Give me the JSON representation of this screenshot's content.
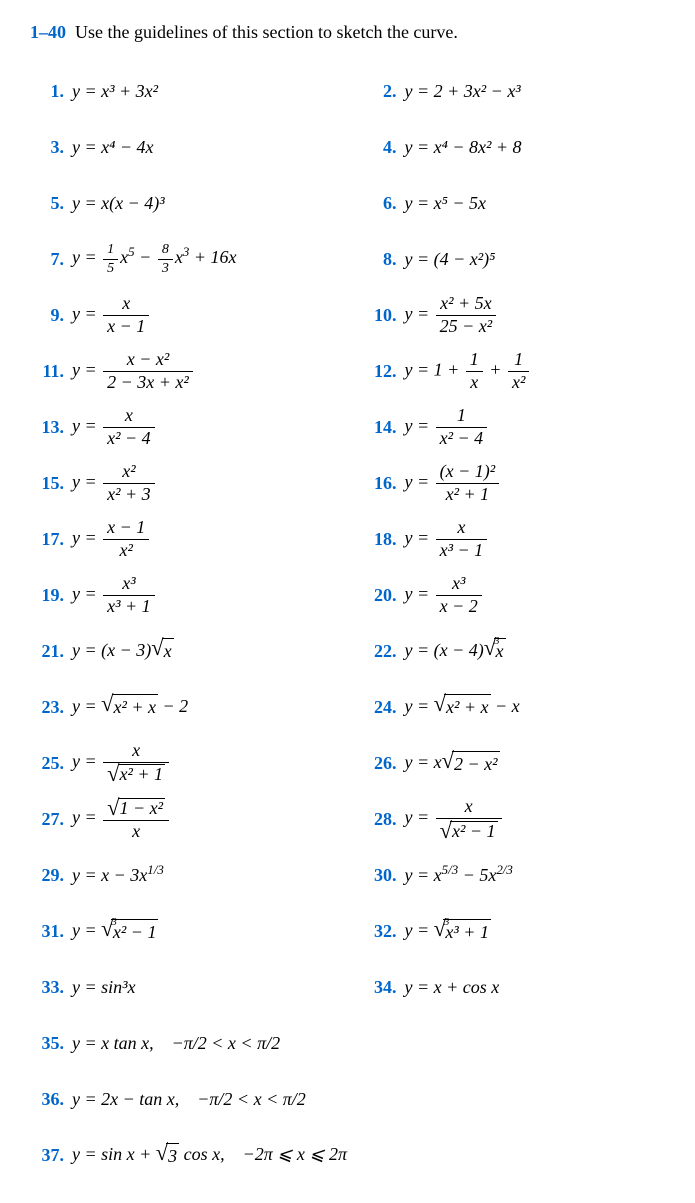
{
  "header": {
    "range": "1–40",
    "text": "Use the guidelines of this section to sketch the curve."
  },
  "p": {
    "n1": "1.",
    "n2": "2.",
    "n3": "3.",
    "n4": "4.",
    "n5": "5.",
    "n6": "6.",
    "n7": "7.",
    "n8": "8.",
    "n9": "9.",
    "n10": "10.",
    "n11": "11.",
    "n12": "12.",
    "n13": "13.",
    "n14": "14.",
    "n15": "15.",
    "n16": "16.",
    "n17": "17.",
    "n18": "18.",
    "n19": "19.",
    "n20": "20.",
    "n21": "21.",
    "n22": "22.",
    "n23": "23.",
    "n24": "24.",
    "n25": "25.",
    "n26": "26.",
    "n27": "27.",
    "n28": "28.",
    "n29": "29.",
    "n30": "30.",
    "n31": "31.",
    "n32": "32.",
    "n33": "33.",
    "n34": "34.",
    "n35": "35.",
    "n36": "36.",
    "n37": "37."
  },
  "expr": {
    "e1": "y = x³ + 3x²",
    "e2": "y = 2 + 3x² − x³",
    "e3": "y = x⁴ − 4x",
    "e4": "y = x⁴ − 8x² + 8",
    "e5": "y = x(x − 4)³",
    "e6": "y = x⁵ − 5x",
    "e8": "y = (4 − x²)⁵",
    "e9_lhs": "y = ",
    "e9_num": "x",
    "e9_den": "x − 1",
    "e10_lhs": "y = ",
    "e10_num": "x² + 5x",
    "e10_den": "25 − x²",
    "e11_lhs": "y = ",
    "e11_num": "x − x²",
    "e11_den": "2 − 3x + x²",
    "e12_lhs": "y = 1 + ",
    "e12_num1": "1",
    "e12_den1": "x",
    "e12_plus": " + ",
    "e12_num2": "1",
    "e12_den2": "x²",
    "e13_lhs": "y = ",
    "e13_num": "x",
    "e13_den": "x² − 4",
    "e14_lhs": "y = ",
    "e14_num": "1",
    "e14_den": "x² − 4",
    "e15_lhs": "y = ",
    "e15_num": "x²",
    "e15_den": "x² + 3",
    "e16_lhs": "y = ",
    "e16_num": "(x − 1)²",
    "e16_den": "x² + 1",
    "e17_lhs": "y = ",
    "e17_num": "x − 1",
    "e17_den": "x²",
    "e18_lhs": "y = ",
    "e18_num": "x",
    "e18_den": "x³ − 1",
    "e19_lhs": "y = ",
    "e19_num": "x³",
    "e19_den": "x³ + 1",
    "e20_lhs": "y = ",
    "e20_num": "x³",
    "e20_den": "x − 2",
    "e21_pre": "y = (x − 3)",
    "e21_rad": "x",
    "e22_pre": "y = (x − 4)",
    "e22_idx": "3",
    "e22_rad": "x",
    "e23_pre": "y = ",
    "e23_rad": "x² + x",
    "e23_post": " − 2",
    "e24_pre": "y = ",
    "e24_rad": "x² + x",
    "e24_post": " − x",
    "e25_lhs": "y = ",
    "e25_num": "x",
    "e25_denrad": "x² + 1",
    "e26_pre": "y = x",
    "e26_rad": "2 − x²",
    "e27_lhs": "y = ",
    "e27_numrad": "1 − x²",
    "e27_den": "x",
    "e28_lhs": "y = ",
    "e28_num": "x",
    "e28_denrad": "x² − 1",
    "e29": "y = x − 3x",
    "e30": "y = x",
    "e30b": " − 5x",
    "e31_pre": "y = ",
    "e31_idx": "3",
    "e31_rad": "x² − 1",
    "e32_pre": "y = ",
    "e32_idx": "3",
    "e32_rad": "x³ + 1",
    "e33": "y = sin³x",
    "e34": "y = x + cos x",
    "e35": "y = x tan x, −π/2 < x < π/2",
    "e36": "y = 2x − tan x, −π/2 < x < π/2",
    "e37_pre": "y = sin x + ",
    "e37_rad": "3",
    "e37_post": " cos x, −2π ⩽ x ⩽ 2π"
  },
  "colors": {
    "accent": "#0066cc",
    "text": "#000000",
    "bg": "#ffffff"
  }
}
